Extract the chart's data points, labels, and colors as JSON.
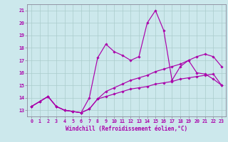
{
  "background_color": "#cce8ec",
  "grid_color": "#aacccc",
  "line_color": "#aa00aa",
  "xlabel": "Windchill (Refroidissement éolien,°C)",
  "ylabel_ticks": [
    13,
    14,
    15,
    16,
    17,
    18,
    19,
    20,
    21
  ],
  "xlim": [
    -0.5,
    23.5
  ],
  "ylim": [
    12.5,
    21.5
  ],
  "xtick_labels": [
    "0",
    "1",
    "2",
    "3",
    "4",
    "5",
    "6",
    "7",
    "8",
    "9",
    "10",
    "11",
    "12",
    "13",
    "14",
    "15",
    "16",
    "17",
    "18",
    "19",
    "20",
    "21",
    "22",
    "23"
  ],
  "series": [
    [
      13.3,
      13.7,
      14.1,
      13.3,
      13.0,
      12.9,
      12.8,
      13.1,
      13.9,
      14.1,
      14.3,
      14.5,
      14.7,
      14.8,
      14.9,
      15.1,
      15.2,
      15.3,
      15.5,
      15.6,
      15.7,
      15.8,
      15.9,
      15.0
    ],
    [
      13.3,
      13.7,
      14.1,
      13.3,
      13.0,
      12.9,
      12.8,
      13.1,
      13.9,
      14.5,
      14.8,
      15.1,
      15.4,
      15.6,
      15.8,
      16.1,
      16.3,
      16.5,
      16.7,
      17.0,
      17.3,
      17.5,
      17.3,
      16.5
    ],
    [
      13.3,
      13.7,
      14.1,
      13.3,
      13.0,
      12.9,
      12.8,
      14.0,
      17.2,
      18.3,
      17.7,
      17.4,
      17.0,
      17.3,
      20.0,
      21.0,
      19.4,
      15.4,
      16.5,
      17.0,
      16.0,
      15.9,
      15.5,
      15.0
    ]
  ]
}
